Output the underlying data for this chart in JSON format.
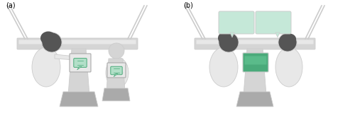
{
  "bg_color": "#ffffff",
  "outline_color": "#cccccc",
  "dark_gray": "#555555",
  "mid_gray": "#aaaaaa",
  "light_gray": "#d5d5d5",
  "lighter_gray": "#e8e8e8",
  "green_fill": "#4aaa7a",
  "green_light": "#b2dfc8",
  "speech_bubble_color": "#c5e8d8",
  "label_a": "(a)",
  "label_b": "(b)"
}
